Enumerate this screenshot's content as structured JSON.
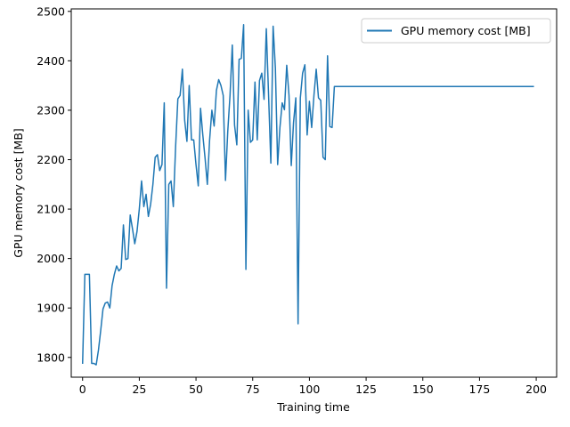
{
  "chart_data": {
    "type": "line",
    "title": "",
    "xlabel": "Training time",
    "ylabel": "GPU memory cost [MB]",
    "xlim": [
      -5,
      209
    ],
    "ylim": [
      1760,
      2505
    ],
    "xticks": [
      0,
      25,
      50,
      75,
      100,
      125,
      150,
      175,
      200
    ],
    "yticks": [
      1800,
      1900,
      2000,
      2100,
      2200,
      2300,
      2400,
      2500
    ],
    "grid": false,
    "legend_position": "top-right",
    "series": [
      {
        "name": "GPU memory cost [MB]",
        "color": "#1f77b4",
        "x": [
          0,
          1,
          2,
          3,
          4,
          5,
          6,
          7,
          8,
          9,
          10,
          11,
          12,
          13,
          14,
          15,
          16,
          17,
          18,
          19,
          20,
          21,
          22,
          23,
          24,
          25,
          26,
          27,
          28,
          29,
          30,
          31,
          32,
          33,
          34,
          35,
          36,
          37,
          38,
          39,
          40,
          41,
          42,
          43,
          44,
          45,
          46,
          47,
          48,
          49,
          50,
          51,
          52,
          53,
          54,
          55,
          56,
          57,
          58,
          59,
          60,
          61,
          62,
          63,
          64,
          65,
          66,
          67,
          68,
          69,
          70,
          71,
          72,
          73,
          74,
          75,
          76,
          77,
          78,
          79,
          80,
          81,
          82,
          83,
          84,
          85,
          86,
          87,
          88,
          89,
          90,
          91,
          92,
          93,
          94,
          95,
          96,
          97,
          98,
          99,
          100,
          101,
          102,
          103,
          104,
          105,
          106,
          107,
          108,
          109,
          110,
          111,
          199
        ],
        "y": [
          1787,
          1968,
          1968,
          1968,
          1788,
          1788,
          1785,
          1815,
          1855,
          1898,
          1910,
          1912,
          1900,
          1945,
          1968,
          1985,
          1975,
          1980,
          2068,
          1998,
          2000,
          2088,
          2060,
          2030,
          2055,
          2100,
          2157,
          2105,
          2130,
          2085,
          2110,
          2150,
          2205,
          2210,
          2178,
          2190,
          2315,
          1940,
          2150,
          2157,
          2105,
          2225,
          2323,
          2330,
          2383,
          2280,
          2237,
          2350,
          2240,
          2240,
          2190,
          2147,
          2304,
          2250,
          2203,
          2150,
          2240,
          2300,
          2268,
          2340,
          2362,
          2350,
          2330,
          2158,
          2257,
          2330,
          2432,
          2270,
          2230,
          2403,
          2405,
          2473,
          1978,
          2300,
          2235,
          2240,
          2357,
          2240,
          2360,
          2375,
          2322,
          2465,
          2330,
          2193,
          2470,
          2385,
          2190,
          2265,
          2315,
          2301,
          2391,
          2330,
          2188,
          2275,
          2325,
          1868,
          2325,
          2375,
          2392,
          2250,
          2318,
          2265,
          2330,
          2383,
          2325,
          2320,
          2205,
          2200,
          2410,
          2267,
          2265,
          2348,
          2348
        ]
      }
    ]
  }
}
